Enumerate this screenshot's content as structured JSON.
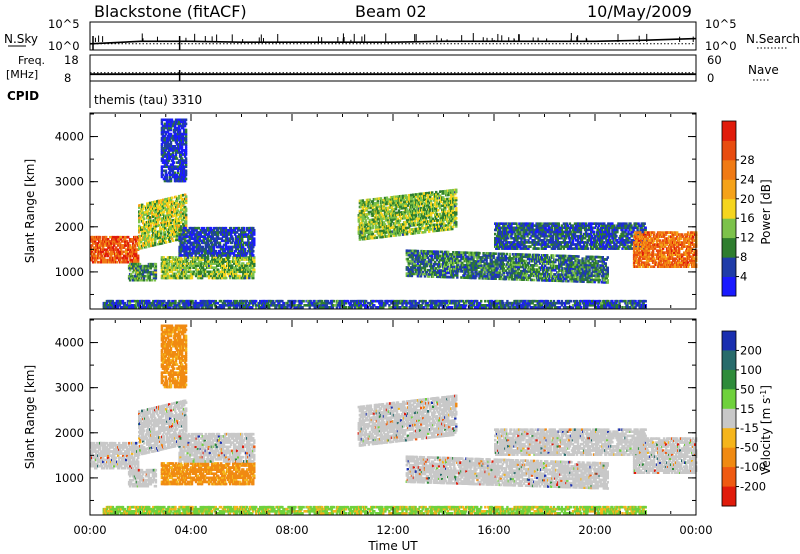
{
  "header": {
    "station": "Blackstone (fitACF)",
    "beam": "Beam 02",
    "date": "10/May/2009"
  },
  "noise_panel": {
    "left_label": "N.Sky",
    "right_label": "N.Search",
    "left_ticks": [
      "10^5",
      "10^0"
    ],
    "right_ticks": [
      "10^5",
      "10^0"
    ]
  },
  "freq_panel": {
    "left_label_1": "Freq.",
    "left_label_2": "[MHz]",
    "right_label": "Nave",
    "left_ticks": [
      "18",
      "8"
    ],
    "right_ticks": [
      "60",
      "0"
    ]
  },
  "cpid_panel": {
    "label": "CPID",
    "program": "themis (tau) 3310"
  },
  "time_axis": {
    "label": "Time UT",
    "ticks": [
      "00:00",
      "04:00",
      "08:00",
      "12:00",
      "16:00",
      "20:00",
      "00:00"
    ]
  },
  "colors": {
    "power_scale": [
      "#1a1aff",
      "#1f3ca8",
      "#2e7d2e",
      "#7cc24a",
      "#f5d51e",
      "#f5a219",
      "#f07a14",
      "#e84c10",
      "#e01b0b"
    ],
    "velocity_scale": [
      "#1a2fb0",
      "#276b6b",
      "#2e8b3a",
      "#6fd13c",
      "#c8c8c8",
      "#f5b51b",
      "#f08a12",
      "#ef5a12",
      "#e01b0b"
    ],
    "ground_scatter": "#c8c8c8"
  },
  "chart_data": [
    {
      "type": "line",
      "title": "",
      "ylabel": "N.Sky",
      "y_scale": "log",
      "ylim": [
        1,
        100000
      ],
      "xlim": [
        "00:00",
        "24:00"
      ],
      "series": [
        {
          "name": "N.Sky",
          "x": [
            0,
            2,
            4,
            6,
            8,
            10,
            12,
            14,
            16,
            18,
            20,
            22,
            24
          ],
          "values": [
            10,
            30,
            30,
            20,
            20,
            20,
            20,
            30,
            30,
            30,
            30,
            50,
            100
          ]
        },
        {
          "name": "N.Search",
          "x": [
            0,
            2,
            4,
            6,
            8,
            10,
            12,
            14,
            16,
            18,
            20,
            22,
            24
          ],
          "values": [
            10,
            10,
            10,
            10,
            10,
            10,
            10,
            10,
            10,
            10,
            10,
            10,
            10
          ]
        }
      ]
    },
    {
      "type": "line",
      "title": "",
      "ylabel": "Freq. [MHz]",
      "ylim": [
        8,
        18
      ],
      "y2label": "Nave",
      "y2lim": [
        0,
        60
      ],
      "xlim": [
        "00:00",
        "24:00"
      ],
      "series": [
        {
          "name": "Freq.",
          "x": [
            0,
            4,
            8,
            12,
            16,
            20,
            24
          ],
          "values": [
            10.4,
            10.4,
            10.4,
            10.4,
            10.4,
            10.4,
            10.4
          ]
        },
        {
          "name": "Nave",
          "x": [
            0,
            4,
            8,
            12,
            16,
            20,
            24
          ],
          "values": [
            18,
            18,
            18,
            18,
            18,
            18,
            18
          ]
        }
      ]
    },
    {
      "type": "heatmap",
      "title": "",
      "xlabel": "Time UT",
      "ylabel": "Slant Range [km]",
      "xlim": [
        0,
        24
      ],
      "ylim": [
        200,
        4500
      ],
      "y_ticks": [
        "1000",
        "2000",
        "3000",
        "4000"
      ],
      "colorbar": {
        "label": "Power [dB]",
        "ticks": [
          "4",
          "8",
          "12",
          "16",
          "20",
          "24",
          "28"
        ],
        "range": [
          0,
          32
        ]
      },
      "regions": [
        {
          "t": [
            0.0,
            1.9
          ],
          "range": [
            1200,
            1800
          ],
          "level": 26
        },
        {
          "t": [
            1.9,
            3.8
          ],
          "range": [
            1500,
            2500
          ],
          "level": 14
        },
        {
          "t": [
            1.5,
            2.6
          ],
          "range": [
            800,
            1200
          ],
          "level": 10
        },
        {
          "t": [
            2.8,
            6.5
          ],
          "range": [
            850,
            1350
          ],
          "level": 12
        },
        {
          "t": [
            3.5,
            6.5
          ],
          "range": [
            1350,
            2000
          ],
          "level": 5
        },
        {
          "t": [
            2.8,
            3.8
          ],
          "range": [
            3000,
            4400
          ],
          "level": 4
        },
        {
          "t": [
            0.5,
            22.0
          ],
          "range": [
            200,
            380
          ],
          "level": 6
        },
        {
          "t": [
            10.6,
            14.5
          ],
          "range": [
            1700,
            2600
          ],
          "level": 12
        },
        {
          "t": [
            12.5,
            20.5
          ],
          "range": [
            900,
            1500
          ],
          "level": 8
        },
        {
          "t": [
            16.0,
            22.0
          ],
          "range": [
            1500,
            2100
          ],
          "level": 6
        },
        {
          "t": [
            21.5,
            24.0
          ],
          "range": [
            1100,
            1900
          ],
          "level": 24
        }
      ]
    },
    {
      "type": "heatmap",
      "title": "",
      "xlabel": "Time UT",
      "ylabel": "Slant Range [km]",
      "xlim": [
        0,
        24
      ],
      "ylim": [
        200,
        4500
      ],
      "y_ticks": [
        "1000",
        "2000",
        "3000",
        "4000"
      ],
      "colorbar": {
        "label": "Velocity [m s^-1]",
        "ticks": [
          "200",
          "100",
          "50",
          "15",
          "-15",
          "-50",
          "-100",
          "-200"
        ],
        "range": [
          -250,
          250
        ]
      },
      "regions": [
        {
          "t": [
            0.0,
            1.9
          ],
          "range": [
            1200,
            1800
          ],
          "level": 0
        },
        {
          "t": [
            1.9,
            3.8
          ],
          "range": [
            1500,
            2500
          ],
          "level": 0
        },
        {
          "t": [
            1.5,
            2.6
          ],
          "range": [
            800,
            1200
          ],
          "level": 0
        },
        {
          "t": [
            2.8,
            6.5
          ],
          "range": [
            850,
            1350
          ],
          "level": -60
        },
        {
          "t": [
            3.5,
            6.5
          ],
          "range": [
            1350,
            2000
          ],
          "level": 0
        },
        {
          "t": [
            2.8,
            3.8
          ],
          "range": [
            3000,
            4400
          ],
          "level": -30
        },
        {
          "t": [
            0.5,
            22.0
          ],
          "range": [
            200,
            380
          ],
          "level": 40
        },
        {
          "t": [
            10.6,
            14.5
          ],
          "range": [
            1700,
            2600
          ],
          "level": 0
        },
        {
          "t": [
            12.5,
            20.5
          ],
          "range": [
            900,
            1500
          ],
          "level": 0
        },
        {
          "t": [
            16.0,
            22.0
          ],
          "range": [
            1500,
            2100
          ],
          "level": 0
        },
        {
          "t": [
            21.5,
            24.0
          ],
          "range": [
            1100,
            1900
          ],
          "level": 0
        }
      ]
    }
  ]
}
